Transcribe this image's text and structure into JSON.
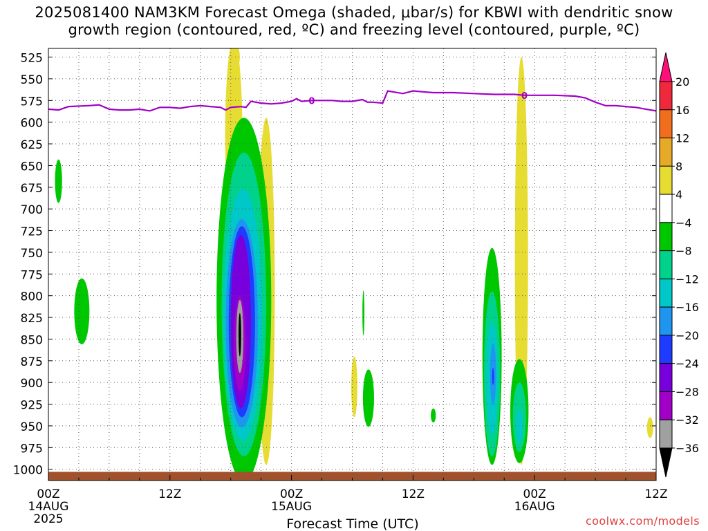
{
  "header": {
    "title_line1": "2025081400 NAM3KM Forecast Omega (shaded, μbar/s) for KBWI with dendritic snow",
    "title_line2": "growth region (contoured, red, ºC) and freezing level (contoured, purple, ºC)"
  },
  "footer": {
    "credit": "coolwx.com/models"
  },
  "chart_data": {
    "type": "heatmap",
    "xlabel": "Forecast Time (UTC)",
    "x_range_hours": [
      0,
      48
    ],
    "x_ticks": [
      {
        "hour": 0,
        "lines": [
          "00Z",
          "14AUG",
          "2025"
        ]
      },
      {
        "hour": 12,
        "lines": [
          "12Z"
        ]
      },
      {
        "hour": 24,
        "lines": [
          "00Z",
          "15AUG"
        ]
      },
      {
        "hour": 36,
        "lines": [
          "12Z"
        ]
      },
      {
        "hour": 48,
        "lines": [
          "00Z",
          "16AUG"
        ]
      },
      {
        "hour": 60,
        "lines": [
          "12Z"
        ]
      }
    ],
    "ylabel": "",
    "y_ticks_hpa": [
      525,
      550,
      575,
      600,
      625,
      650,
      675,
      700,
      725,
      750,
      775,
      800,
      825,
      850,
      875,
      900,
      925,
      950,
      975,
      1000
    ],
    "y_range_hpa": [
      515,
      1013
    ],
    "grid": true,
    "colorbar": {
      "labels": [
        20,
        16,
        12,
        8,
        4,
        -4,
        -8,
        -12,
        -16,
        -20,
        -24,
        -28,
        -32,
        -36
      ],
      "colors": [
        "#ff0f78",
        "#f0283c",
        "#f06e1e",
        "#e6aa28",
        "#e6dc32",
        "#ffffff",
        "#00c800",
        "#00d28c",
        "#00c8c8",
        "#1e96f0",
        "#1e3cff",
        "#7800dc",
        "#a000c8",
        "#a0a0a0",
        "#000000"
      ]
    },
    "freezing_level": {
      "label": "0",
      "color": "#a000c8",
      "points": [
        [
          0,
          585
        ],
        [
          1,
          586
        ],
        [
          2,
          582
        ],
        [
          4,
          581
        ],
        [
          5,
          580
        ],
        [
          6,
          585
        ],
        [
          7,
          586
        ],
        [
          8,
          586
        ],
        [
          9,
          585
        ],
        [
          10,
          587
        ],
        [
          11,
          583
        ],
        [
          12,
          583
        ],
        [
          13,
          584
        ],
        [
          14,
          582
        ],
        [
          15,
          581
        ],
        [
          16,
          582
        ],
        [
          17,
          583
        ],
        [
          17.5,
          586
        ],
        [
          18,
          583
        ],
        [
          19,
          582
        ],
        [
          19.5,
          583
        ],
        [
          20,
          576
        ],
        [
          21,
          578
        ],
        [
          22,
          579
        ],
        [
          23,
          578
        ],
        [
          24,
          576
        ],
        [
          24.5,
          573
        ],
        [
          25,
          576
        ],
        [
          26,
          575
        ],
        [
          28,
          575
        ],
        [
          29,
          576
        ],
        [
          30,
          576
        ],
        [
          31,
          574
        ],
        [
          31.5,
          577
        ],
        [
          32,
          577
        ],
        [
          33,
          578
        ],
        [
          33.5,
          564
        ],
        [
          34,
          565
        ],
        [
          35,
          567
        ],
        [
          36,
          564
        ],
        [
          37,
          565
        ],
        [
          38,
          566
        ],
        [
          40,
          566
        ],
        [
          42,
          567
        ],
        [
          44,
          568
        ],
        [
          46,
          568
        ],
        [
          47,
          569
        ],
        [
          48,
          569
        ],
        [
          50,
          569
        ],
        [
          52,
          570
        ],
        [
          53,
          572
        ],
        [
          54,
          577
        ],
        [
          55,
          581
        ],
        [
          56,
          581
        ],
        [
          57,
          582
        ],
        [
          58,
          583
        ],
        [
          59,
          585
        ],
        [
          60,
          587
        ]
      ]
    },
    "omega_regions": [
      {
        "value": 8,
        "color": "#e6aa28",
        "cx": 18.3,
        "cy": 640,
        "rx": 0.55,
        "ry": 70
      },
      {
        "value": 4,
        "color": "#e6dc32",
        "cx": 18.3,
        "cy": 615,
        "rx": 0.85,
        "ry": 110
      },
      {
        "value": 4,
        "color": "#e6dc32",
        "cx": 18.6,
        "cy": 525,
        "rx": 0.3,
        "ry": 12
      },
      {
        "value": 4,
        "color": "#e6dc32",
        "cx": 21.5,
        "cy": 795,
        "rx": 0.85,
        "ry": 200
      },
      {
        "value": 8,
        "color": "#e6aa28",
        "cx": 21.5,
        "cy": 770,
        "rx": 0.3,
        "ry": 60
      },
      {
        "value": 4,
        "color": "#e6dc32",
        "cx": 30.2,
        "cy": 905,
        "rx": 0.3,
        "ry": 35
      },
      {
        "value": 4,
        "color": "#e6dc32",
        "cx": 46.7,
        "cy": 760,
        "rx": 0.65,
        "ry": 235
      },
      {
        "value": 4,
        "color": "#e6dc32",
        "cx": 59.4,
        "cy": 952,
        "rx": 0.3,
        "ry": 12
      },
      {
        "value": -4,
        "color": "#00c800",
        "cx": 1.0,
        "cy": 668,
        "rx": 0.35,
        "ry": 25
      },
      {
        "value": -4,
        "color": "#00c800",
        "cx": 3.3,
        "cy": 818,
        "rx": 0.75,
        "ry": 38
      },
      {
        "value": -4,
        "color": "#00c800",
        "cx": 31.1,
        "cy": 820,
        "rx": 0.1,
        "ry": 26
      },
      {
        "value": -4,
        "color": "#00c800",
        "cx": 31.6,
        "cy": 918,
        "rx": 0.55,
        "ry": 33
      },
      {
        "value": -4,
        "color": "#00c800",
        "cx": 38.0,
        "cy": 938,
        "rx": 0.25,
        "ry": 8
      },
      {
        "value": -4,
        "color": "#00c800",
        "cx": 19.3,
        "cy": 805,
        "rx": 2.7,
        "ry": 210
      },
      {
        "value": -8,
        "color": "#00d28c",
        "cx": 19.3,
        "cy": 810,
        "rx": 2.2,
        "ry": 175
      },
      {
        "value": -12,
        "color": "#00c8c8",
        "cx": 19.2,
        "cy": 822,
        "rx": 1.9,
        "ry": 145
      },
      {
        "value": -16,
        "color": "#1e96f0",
        "cx": 19.1,
        "cy": 832,
        "rx": 1.6,
        "ry": 120
      },
      {
        "value": -20,
        "color": "#1e3cff",
        "cx": 19.1,
        "cy": 830,
        "rx": 1.3,
        "ry": 110
      },
      {
        "value": -24,
        "color": "#7800dc",
        "cx": 19.0,
        "cy": 830,
        "rx": 1.0,
        "ry": 100
      },
      {
        "value": -28,
        "color": "#a000c8",
        "cx": 18.9,
        "cy": 855,
        "rx": 0.6,
        "ry": 55
      },
      {
        "value": -32,
        "color": "#a0a0a0",
        "cx": 18.9,
        "cy": 847,
        "rx": 0.35,
        "ry": 42
      },
      {
        "value": -36,
        "color": "#000000",
        "cx": 18.9,
        "cy": 845,
        "rx": 0.13,
        "ry": 25
      },
      {
        "value": -4,
        "color": "#00c800",
        "cx": 43.8,
        "cy": 870,
        "rx": 0.95,
        "ry": 125
      },
      {
        "value": -8,
        "color": "#00d28c",
        "cx": 43.8,
        "cy": 890,
        "rx": 0.8,
        "ry": 95
      },
      {
        "value": -12,
        "color": "#00c8c8",
        "cx": 43.8,
        "cy": 895,
        "rx": 0.55,
        "ry": 65
      },
      {
        "value": -16,
        "color": "#1e96f0",
        "cx": 43.9,
        "cy": 890,
        "rx": 0.3,
        "ry": 35
      },
      {
        "value": -20,
        "color": "#1e3cff",
        "cx": 43.9,
        "cy": 893,
        "rx": 0.1,
        "ry": 10
      },
      {
        "value": -4,
        "color": "#00c800",
        "cx": 46.5,
        "cy": 933,
        "rx": 0.9,
        "ry": 60
      },
      {
        "value": -8,
        "color": "#00d28c",
        "cx": 46.5,
        "cy": 940,
        "rx": 0.65,
        "ry": 40
      },
      {
        "value": -12,
        "color": "#00c8c8",
        "cx": 46.5,
        "cy": 950,
        "rx": 0.3,
        "ry": 20
      }
    ],
    "ground_color": "#a0522d",
    "ground_top_hpa": 1003
  }
}
